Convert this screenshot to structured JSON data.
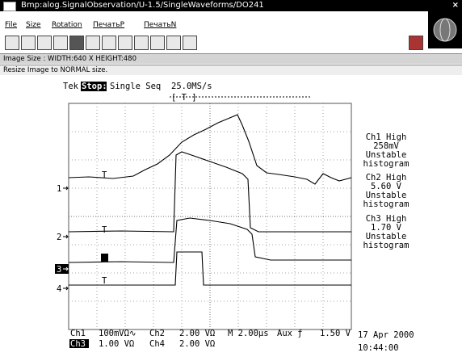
{
  "title_bar": {
    "title": "Bmp:alog.SignalObservation/U-1.5/SingleWaveforms/DO241",
    "close": "×"
  },
  "menu": [
    "File",
    "Size",
    "Rotation",
    "ПечатьP",
    "ПечатьN"
  ],
  "status": {
    "image_size": "Image Size : WIDTH:640 X HEIGHT:480",
    "resize": "Resize Image to NORMAL size."
  },
  "scope": {
    "header": {
      "brand": "Tek",
      "state": "Stop:",
      "mode": "Single Seq",
      "rate": "25.0MS/s"
    },
    "trigger_bar": "[ T ]",
    "channel_markers": [
      "1",
      "2",
      "3",
      "4"
    ],
    "measurements": [
      {
        "label": "Ch1 High",
        "value": "258mV",
        "status": "Unstable",
        "kind": "histogram"
      },
      {
        "label": "Ch2 High",
        "value": "5.60 V",
        "status": "Unstable",
        "kind": "histogram"
      },
      {
        "label": "Ch3 High",
        "value": "1.70 V",
        "status": "Unstable",
        "kind": "histogram"
      }
    ],
    "settings": {
      "ch1": "Ch1",
      "ch1_scale": "100mVΩ∿",
      "ch2": "Ch2",
      "ch2_scale": "2.00 VΩ",
      "timebase": "M 2.00µs",
      "trigger": "Aux ƒ",
      "trigger_level": "1.50 V",
      "ch3": "Ch3",
      "ch3_scale": "1.00 VΩ",
      "ch4": "Ch4",
      "ch4_scale": "2.00 VΩ"
    },
    "date": "17 Apr 2000",
    "time": "10:44:00"
  }
}
